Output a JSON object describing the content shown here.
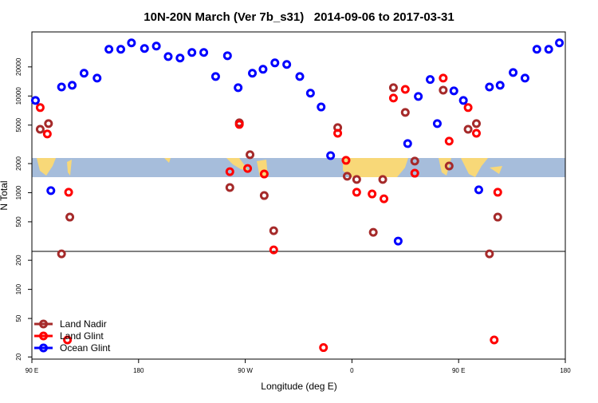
{
  "chart_data": {
    "type": "scatter",
    "title": "10N-20N March (Ver 7b_s31)   2014-09-06 to 2017-03-31",
    "x_label": "Longitude (deg E)",
    "y_label": "N Total",
    "log_y": true,
    "xlim": [
      90,
      540
    ],
    "ylim": [
      19,
      46000
    ],
    "xticks": [
      {
        "value": 90,
        "label": "90 E"
      },
      180,
      {
        "value": 270,
        "label": "90 W"
      },
      {
        "value": 360,
        "label": "0"
      },
      {
        "value": 450,
        "label": "90 E"
      },
      {
        "value": 540,
        "label": "180"
      }
    ],
    "yticks": [
      20,
      50,
      100,
      200,
      500,
      1000,
      2000,
      5000,
      10000,
      20000
    ],
    "legend": "bottom-left",
    "series": [
      {
        "name": "Land Nadir",
        "color": "#a52a2a",
        "x": [
          97,
          104,
          115,
          122,
          257,
          265,
          274,
          286,
          294,
          348,
          356,
          364,
          378,
          386,
          395,
          405,
          413,
          437,
          442,
          458,
          465,
          476,
          483
        ],
        "values": [
          4530,
          5180,
          233,
          559,
          1130,
          5280,
          2470,
          934,
          404,
          4710,
          1480,
          1370,
          389,
          1370,
          12200,
          6760,
          2120,
          11500,
          1890,
          4530,
          5180,
          233,
          559
        ]
      },
      {
        "name": "Land Glint",
        "color": "#ff0000",
        "x": [
          97,
          103,
          120,
          121,
          257,
          265,
          272,
          286,
          294,
          336,
          348,
          355,
          364,
          377,
          387,
          395,
          405,
          413,
          437,
          442,
          458,
          465,
          480,
          483
        ],
        "values": [
          7590,
          4050,
          30,
          1010,
          1650,
          5080,
          1780,
          1560,
          256,
          25,
          4120,
          2160,
          1010,
          970,
          865,
          9520,
          11700,
          1590,
          15300,
          3410,
          7590,
          4120,
          30,
          1010
        ]
      },
      {
        "name": "Ocean Glint",
        "color": "#0000ff",
        "x": [
          93,
          106,
          115,
          124,
          134,
          145,
          155,
          165,
          174,
          185,
          195,
          205,
          215,
          225,
          235,
          245,
          255,
          264,
          276,
          285,
          295,
          305,
          316,
          325,
          334,
          342,
          399,
          407,
          416,
          426,
          432,
          446,
          454,
          467,
          476,
          485,
          496,
          506,
          516,
          526,
          535
        ],
        "values": [
          9000,
          1050,
          12400,
          12900,
          17200,
          15300,
          30400,
          30400,
          35400,
          31000,
          32800,
          25600,
          24700,
          28200,
          28200,
          15900,
          26100,
          12200,
          17200,
          18900,
          22000,
          21200,
          15900,
          10700,
          7700,
          2420,
          316,
          3220,
          9900,
          14800,
          5180,
          11300,
          9000,
          1070,
          12400,
          12900,
          17500,
          15300,
          30400,
          30400,
          35400
        ]
      }
    ]
  }
}
